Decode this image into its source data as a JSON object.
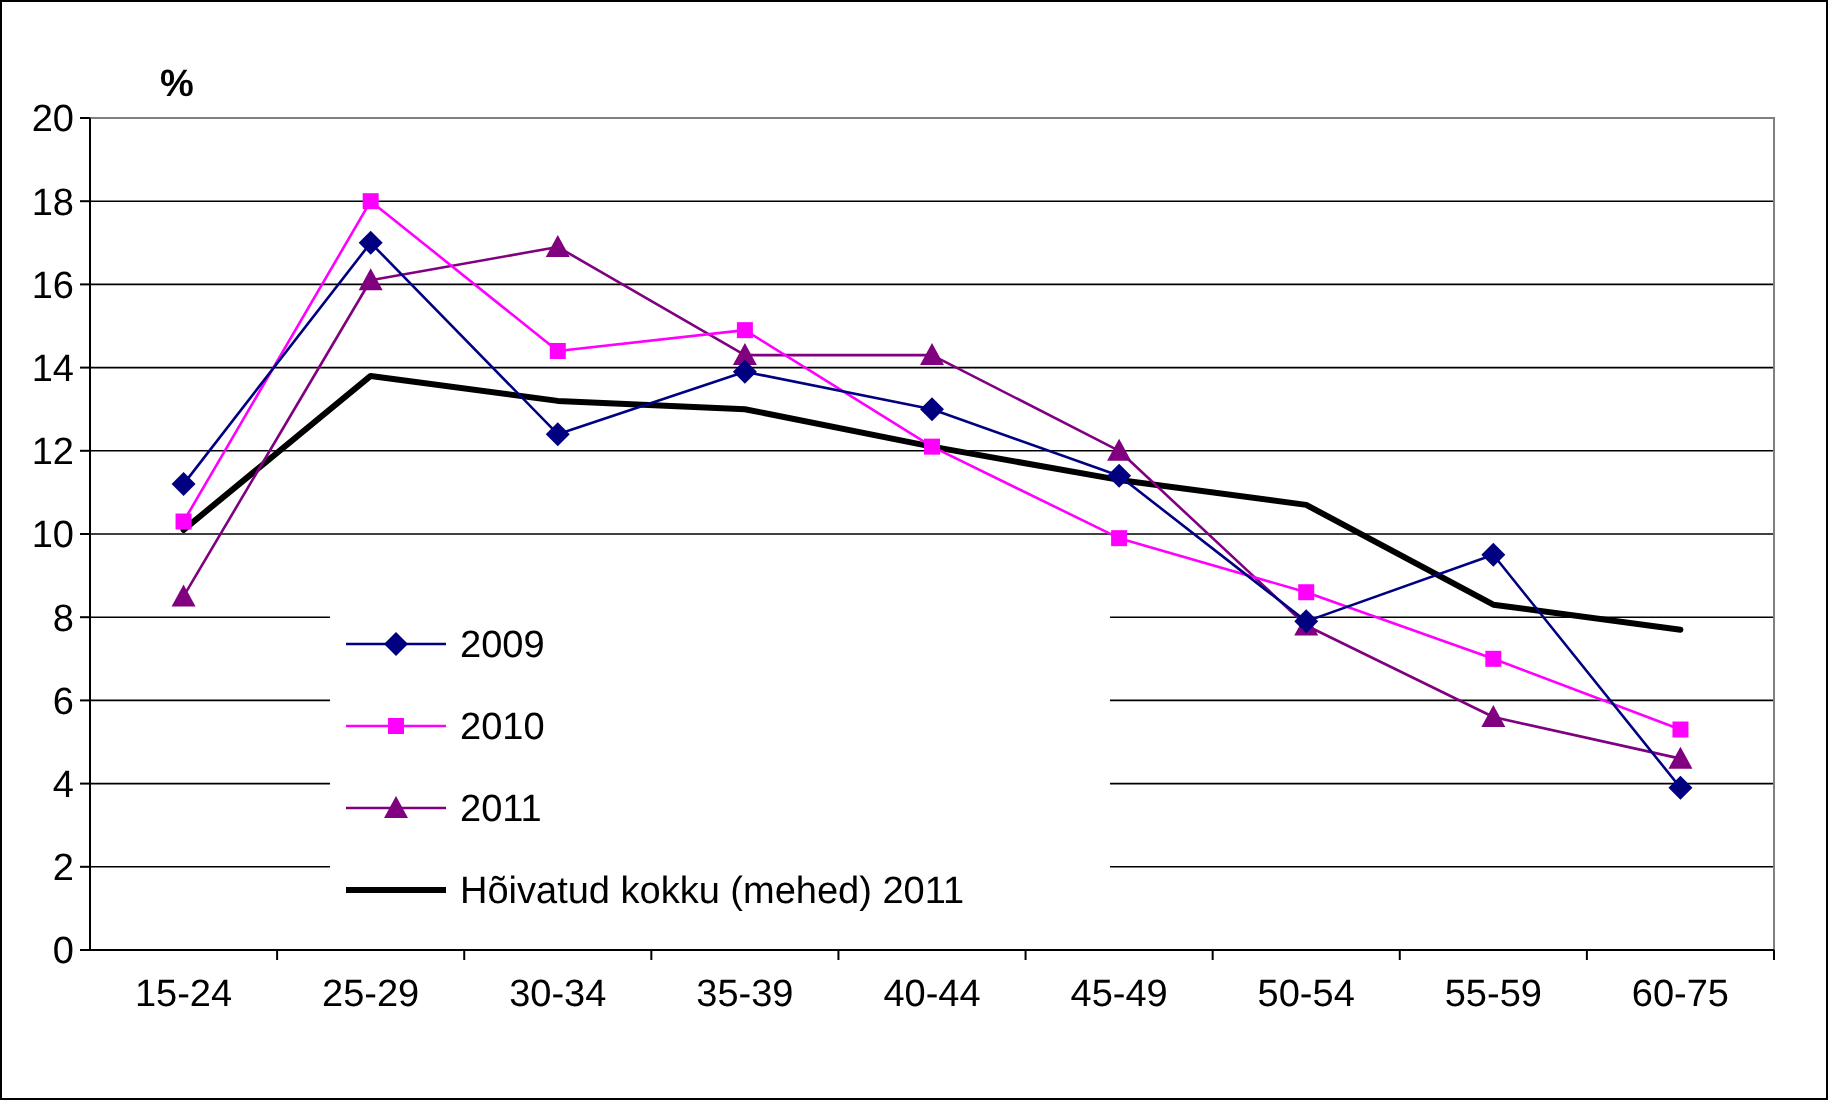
{
  "chart_data": {
    "type": "line",
    "ylabel": "%",
    "categories": [
      "15-24",
      "25-29",
      "30-34",
      "35-39",
      "40-44",
      "45-49",
      "50-54",
      "55-59",
      "60-75"
    ],
    "series": [
      {
        "name": "2009",
        "color": "#000080",
        "marker": "diamond",
        "values": [
          11.2,
          17.0,
          12.4,
          13.9,
          13.0,
          11.4,
          7.9,
          9.5,
          3.9
        ]
      },
      {
        "name": "2010",
        "color": "#ff00ff",
        "marker": "square",
        "values": [
          10.3,
          18.0,
          14.4,
          14.9,
          12.1,
          9.9,
          8.6,
          7.0,
          5.3
        ]
      },
      {
        "name": "2011",
        "color": "#800080",
        "marker": "triangle",
        "values": [
          8.5,
          16.1,
          16.9,
          14.3,
          14.3,
          12.0,
          7.8,
          5.6,
          4.6
        ]
      },
      {
        "name": "Hõivatud kokku (mehed) 2011",
        "color": "#000000",
        "marker": "none",
        "values": [
          10.1,
          13.8,
          13.2,
          13.0,
          12.1,
          11.3,
          10.7,
          8.3,
          7.7
        ]
      }
    ],
    "ylim": [
      0,
      20
    ],
    "yticks": [
      0,
      2,
      4,
      6,
      8,
      10,
      12,
      14,
      16,
      18,
      20
    ],
    "grid": "y",
    "legend": "bottom left"
  }
}
